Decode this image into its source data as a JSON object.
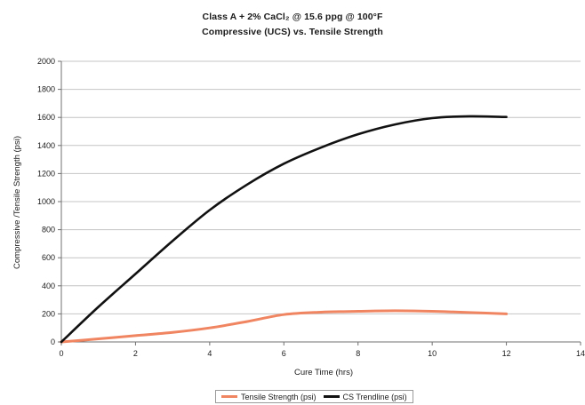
{
  "title_line1": "Class A + 2% CaCl₂ @ 15.6 ppg @ 100°F",
  "title_line2": "Compressive (UCS) vs. Tensile Strength",
  "colors": {
    "tensile": "#f08562",
    "cs_trendline": "#111111",
    "grid": "#c4c4c4",
    "axis": "#707070"
  },
  "chart_data": {
    "type": "line",
    "xlabel": "Cure Time (hrs)",
    "ylabel": "Compressive /Tensile Strength (psi)",
    "xlim": [
      0,
      14
    ],
    "ylim": [
      0,
      2000
    ],
    "x_ticks": [
      "0",
      "2",
      "4",
      "6",
      "8",
      "10",
      "12",
      "14"
    ],
    "y_ticks": [
      "0",
      "200",
      "400",
      "600",
      "800",
      "1000",
      "1200",
      "1400",
      "1600",
      "1800",
      "2000"
    ],
    "grid": "horizontal",
    "legend_position": "bottom",
    "series": [
      {
        "name": "Tensile Strength (psi)",
        "color": "#f08562",
        "points": [
          [
            0,
            0
          ],
          [
            1,
            22
          ],
          [
            2,
            45
          ],
          [
            3,
            68
          ],
          [
            4,
            100
          ],
          [
            5,
            145
          ],
          [
            6,
            195
          ],
          [
            7,
            212
          ],
          [
            8,
            218
          ],
          [
            9,
            222
          ],
          [
            10,
            218
          ],
          [
            11,
            210
          ],
          [
            12,
            200
          ]
        ]
      },
      {
        "name": "CS Trendline (psi)",
        "color": "#111111",
        "points": [
          [
            0,
            0
          ],
          [
            1,
            250
          ],
          [
            2,
            485
          ],
          [
            3,
            720
          ],
          [
            4,
            940
          ],
          [
            5,
            1120
          ],
          [
            6,
            1270
          ],
          [
            7,
            1385
          ],
          [
            8,
            1480
          ],
          [
            9,
            1550
          ],
          [
            10,
            1595
          ],
          [
            11,
            1608
          ],
          [
            12,
            1603
          ]
        ]
      }
    ]
  }
}
